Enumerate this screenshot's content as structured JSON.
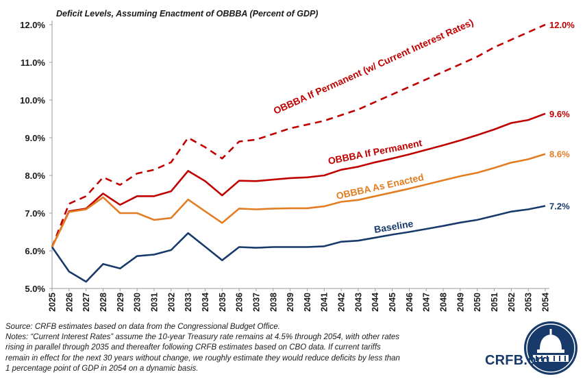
{
  "chart_data": {
    "type": "line",
    "title": "Deficit Levels, Assuming Enactment of OBBBA (Percent of GDP)",
    "x": [
      "2025",
      "2026",
      "2027",
      "2028",
      "2029",
      "2030",
      "2031",
      "2032",
      "2033",
      "2034",
      "2035",
      "2036",
      "2037",
      "2038",
      "2039",
      "2040",
      "2041",
      "2042",
      "2043",
      "2044",
      "2045",
      "2046",
      "2047",
      "2048",
      "2049",
      "2050",
      "2051",
      "2052",
      "2053",
      "2054"
    ],
    "ylim": [
      5.0,
      12.0
    ],
    "yticks": [
      "5.0%",
      "6.0%",
      "7.0%",
      "8.0%",
      "9.0%",
      "10.0%",
      "11.0%",
      "12.0%"
    ],
    "grid": false,
    "legend": "inline labels",
    "series": [
      {
        "name": "OBBBA If Permanent (w/ Current Interest Rates)",
        "style": "dashed",
        "color": "#c00000",
        "end_label": "12.0%",
        "values": [
          6.1,
          7.25,
          7.45,
          7.95,
          7.75,
          8.05,
          8.15,
          8.35,
          9.0,
          8.75,
          8.45,
          8.9,
          8.95,
          9.1,
          9.25,
          9.35,
          9.45,
          9.6,
          9.75,
          9.95,
          10.15,
          10.35,
          10.55,
          10.75,
          10.95,
          11.15,
          11.4,
          11.6,
          11.8,
          12.0
        ]
      },
      {
        "name": "OBBBA If Permanent",
        "style": "solid",
        "color": "#c00000",
        "end_label": "9.6%",
        "values": [
          6.1,
          7.05,
          7.12,
          7.52,
          7.22,
          7.45,
          7.45,
          7.58,
          8.12,
          7.85,
          7.47,
          7.86,
          7.85,
          7.89,
          7.93,
          7.95,
          8.0,
          8.15,
          8.23,
          8.35,
          8.45,
          8.56,
          8.68,
          8.8,
          8.93,
          9.07,
          9.22,
          9.39,
          9.47,
          9.64
        ]
      },
      {
        "name": "OBBBA As Enacted",
        "style": "solid",
        "color": "#e27d22",
        "end_label": "8.6%",
        "values": [
          6.1,
          7.03,
          7.1,
          7.42,
          7.0,
          7.0,
          6.82,
          6.87,
          7.36,
          7.05,
          6.74,
          7.12,
          7.1,
          7.12,
          7.13,
          7.13,
          7.18,
          7.3,
          7.35,
          7.45,
          7.55,
          7.65,
          7.76,
          7.87,
          7.98,
          8.07,
          8.2,
          8.34,
          8.43,
          8.57
        ]
      },
      {
        "name": "Baseline",
        "style": "solid",
        "color": "#173a6b",
        "end_label": "7.2%",
        "values": [
          6.1,
          5.45,
          5.18,
          5.65,
          5.53,
          5.86,
          5.9,
          6.02,
          6.47,
          6.11,
          5.75,
          6.1,
          6.08,
          6.1,
          6.1,
          6.1,
          6.12,
          6.24,
          6.27,
          6.35,
          6.43,
          6.5,
          6.58,
          6.66,
          6.75,
          6.82,
          6.93,
          7.04,
          7.1,
          7.19
        ]
      }
    ]
  },
  "notes": {
    "source": "Source: CRFB estimates based on data from the Congressional Budget Office.",
    "line1": "Notes: “Current Interest Rates” assume the 10-year Treasury rate remains at 4.5% through 2054, with other rates",
    "line2": "rising in parallel through 2035 and thereafter following CRFB estimates based on CBO data. If current tariffs",
    "line3": "remain in effect for the next 30 years without change, we roughly estimate they would reduce deficits by less than",
    "line4": "1 percentage point of GDP in 2054 on a dynamic basis."
  },
  "logo": {
    "text": "CRFB.org",
    "colors": {
      "navy": "#173a6b",
      "white": "#ffffff"
    }
  }
}
